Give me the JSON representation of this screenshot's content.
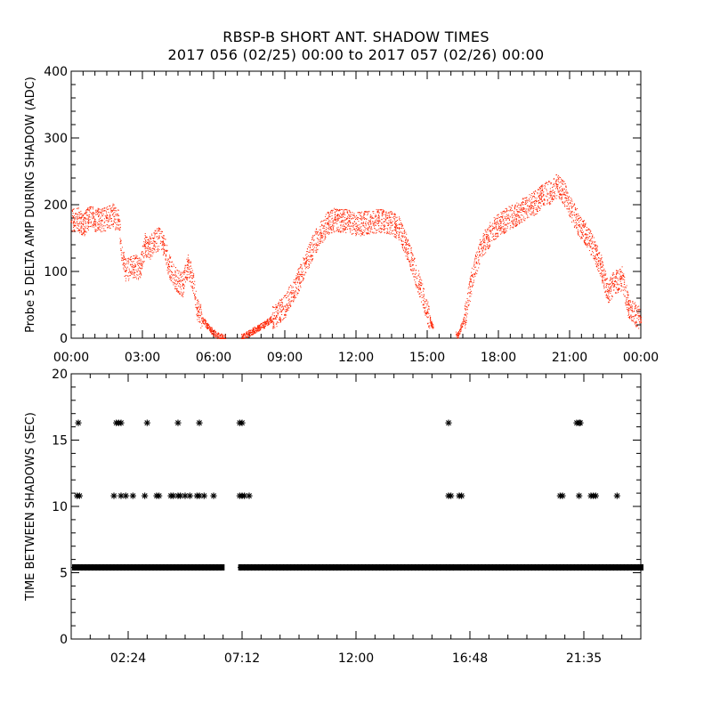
{
  "header": {
    "title": "RBSP-B SHORT ANT. SHADOW TIMES",
    "subtitle": "2017 056 (02/25) 00:00 to 2017 057 (02/26) 00:00"
  },
  "colors": {
    "amp": "#ff2200",
    "shadow": "#000000"
  },
  "chart_data": [
    {
      "type": "scatter",
      "ylabel": "Probe 5 DELTA AMP DURING SHADOW (ADC)",
      "xlim": [
        0,
        24
      ],
      "ylim": [
        0,
        400
      ],
      "yticks": [
        0,
        100,
        200,
        300,
        400
      ],
      "ytick_labels": [
        "0",
        "100",
        "200",
        "300",
        "400"
      ],
      "xticks": [
        0,
        3,
        6,
        9,
        12,
        15,
        18,
        21,
        24
      ],
      "xtick_labels": [
        "00:00",
        "03:00",
        "06:00",
        "09:00",
        "12:00",
        "15:00",
        "18:00",
        "21:00",
        "00:00"
      ],
      "series": [
        {
          "x": [
            0.0,
            0.25,
            0.5,
            0.75,
            1.0,
            1.25,
            1.5,
            1.75,
            2.0,
            2.15,
            2.3,
            2.5,
            2.7,
            2.9,
            3.1,
            3.3,
            3.5,
            3.7,
            3.9,
            4.1,
            4.3,
            4.5,
            4.7,
            4.9,
            5.1,
            5.3,
            5.5,
            5.7,
            5.9,
            6.1,
            6.4,
            7.2,
            7.5,
            7.8,
            8.1,
            8.4,
            8.7,
            9.0,
            9.3,
            9.6,
            9.9,
            10.2,
            10.5,
            10.8,
            11.1,
            11.4,
            11.7,
            12.0,
            12.3,
            12.6,
            12.9,
            13.2,
            13.5,
            13.8,
            14.1,
            14.4,
            14.7,
            15.0,
            15.2,
            16.3,
            16.6,
            16.9,
            17.2,
            17.5,
            17.8,
            18.1,
            18.4,
            18.7,
            19.0,
            19.3,
            19.6,
            19.9,
            20.2,
            20.5,
            20.8,
            21.1,
            21.4,
            21.7,
            22.0,
            22.3,
            22.6,
            22.9,
            23.2,
            23.5,
            23.8,
            24.0
          ],
          "y": [
            175,
            180,
            170,
            182,
            178,
            176,
            180,
            185,
            175,
            120,
            100,
            110,
            108,
            105,
            140,
            135,
            145,
            150,
            140,
            110,
            95,
            85,
            80,
            110,
            90,
            45,
            30,
            20,
            12,
            5,
            1,
            2,
            8,
            14,
            20,
            28,
            38,
            48,
            68,
            90,
            115,
            140,
            158,
            172,
            178,
            176,
            175,
            172,
            172,
            175,
            176,
            175,
            173,
            165,
            140,
            110,
            75,
            40,
            18,
            5,
            35,
            95,
            130,
            150,
            165,
            172,
            180,
            185,
            192,
            198,
            205,
            215,
            220,
            230,
            215,
            190,
            170,
            155,
            135,
            110,
            70,
            85,
            90,
            45,
            35,
            28
          ]
        }
      ]
    },
    {
      "type": "scatter",
      "ylabel": "TIME BETWEEN SHADOWS (SEC)",
      "xlim": [
        0,
        24
      ],
      "ylim": [
        0,
        20
      ],
      "yticks": [
        0,
        5,
        10,
        15,
        20
      ],
      "ytick_labels": [
        "0",
        "5",
        "10",
        "15",
        "20"
      ],
      "xticks": [
        2.4,
        7.2,
        12.0,
        16.8,
        21.6
      ],
      "xtick_labels": [
        "02:24",
        "07:12",
        "12:00",
        "16:48",
        "21:35"
      ],
      "baseline": {
        "value": 5.4,
        "x_ranges": [
          [
            0.15,
            6.35
          ],
          [
            7.15,
            15.6
          ],
          [
            15.8,
            16.2
          ],
          [
            16.4,
            24.0
          ]
        ]
      },
      "series": [
        {
          "x": [
            0.3,
            1.9,
            2.0,
            2.1,
            3.2,
            4.5,
            5.4,
            7.1,
            7.2,
            15.9,
            21.3,
            21.4,
            21.45
          ],
          "y": [
            16.3,
            16.3,
            16.3,
            16.3,
            16.3,
            16.3,
            16.3,
            16.3,
            16.3,
            16.3,
            16.3,
            16.3,
            16.3
          ]
        },
        {
          "x": [
            0.25,
            0.35,
            1.8,
            2.1,
            2.3,
            2.6,
            3.1,
            3.6,
            3.7,
            4.2,
            4.3,
            4.5,
            4.6,
            4.8,
            5.0,
            5.3,
            5.4,
            5.6,
            6.0,
            7.1,
            7.2,
            7.3,
            7.5,
            15.9,
            16.0,
            16.35,
            16.45,
            20.6,
            20.7,
            21.4,
            21.9,
            22.0,
            22.1,
            23.0
          ],
          "y": [
            10.8,
            10.8,
            10.8,
            10.8,
            10.8,
            10.8,
            10.8,
            10.8,
            10.8,
            10.8,
            10.8,
            10.8,
            10.8,
            10.8,
            10.8,
            10.8,
            10.8,
            10.8,
            10.8,
            10.8,
            10.8,
            10.8,
            10.8,
            10.8,
            10.8,
            10.8,
            10.8,
            10.8,
            10.8,
            10.8,
            10.8,
            10.8,
            10.8,
            10.8
          ]
        }
      ]
    }
  ]
}
